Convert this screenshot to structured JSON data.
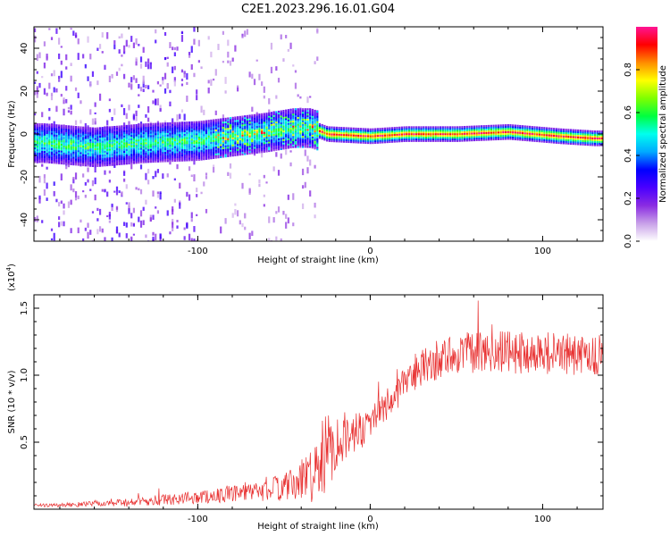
{
  "figure_title": "C2E1.2023.296.16.01.G04",
  "chart_data": [
    {
      "type": "heatmap",
      "title": "C2E1.2023.296.16.01.G04",
      "xlabel": "Height of straight line (km)",
      "ylabel": "Frequency (Hz)",
      "xlim": [
        -195,
        135
      ],
      "ylim": [
        -50,
        50
      ],
      "xticks": [
        -100,
        0,
        100
      ],
      "yticks": [
        -40,
        -20,
        0,
        20,
        40
      ],
      "colorbar": {
        "label": "Normalized spectral amplitude",
        "range": [
          0,
          1
        ],
        "ticks": [
          "0.0",
          "0.2",
          "0.4",
          "0.6",
          "0.8"
        ],
        "colors": [
          "#ffffff",
          "#c8a0e8",
          "#8a2be2",
          "#4a00ff",
          "#0000ff",
          "#00aaff",
          "#00ffee",
          "#00ff40",
          "#7fff00",
          "#ffff00",
          "#ff8c00",
          "#ff0000",
          "#ff1493"
        ]
      },
      "centerline": [
        {
          "x": -190,
          "f": -4
        },
        {
          "x": -160,
          "f": -6
        },
        {
          "x": -130,
          "f": -4
        },
        {
          "x": -100,
          "f": -3
        },
        {
          "x": -80,
          "f": -1
        },
        {
          "x": -60,
          "f": 1
        },
        {
          "x": -45,
          "f": 3
        },
        {
          "x": -35,
          "f": 3
        },
        {
          "x": -25,
          "f": 0
        },
        {
          "x": 0,
          "f": -1
        },
        {
          "x": 20,
          "f": 0
        },
        {
          "x": 50,
          "f": 0
        },
        {
          "x": 80,
          "f": 1
        },
        {
          "x": 110,
          "f": -1
        },
        {
          "x": 130,
          "f": -2
        }
      ]
    },
    {
      "type": "line",
      "xlabel": "Height of straight line (km)",
      "ylabel": "SNR (10 * v/v)",
      "scale_label": "(x10",
      "scale_exp": "4",
      "scale_close": ")",
      "color": "#e83030",
      "xlim": [
        -195,
        135
      ],
      "ylim": [
        0,
        1.6
      ],
      "xticks": [
        -100,
        0,
        100
      ],
      "yticks": [
        "0.5",
        "1.0",
        "1.5"
      ],
      "series": [
        {
          "x": [
            -195,
            -180,
            -160,
            -140,
            -120,
            -100,
            -80,
            -60,
            -45,
            -35,
            -30,
            -25,
            -20,
            -15,
            -10,
            -5,
            0,
            10,
            20,
            30,
            40,
            50,
            60,
            80,
            100,
            120,
            135
          ],
          "y": [
            0.03,
            0.03,
            0.04,
            0.05,
            0.07,
            0.09,
            0.11,
            0.14,
            0.18,
            0.25,
            0.33,
            0.42,
            0.5,
            0.55,
            0.55,
            0.6,
            0.66,
            0.78,
            0.93,
            1.05,
            1.12,
            1.16,
            1.17,
            1.17,
            1.17,
            1.15,
            1.15
          ],
          "noise": [
            0.01,
            0.015,
            0.02,
            0.03,
            0.04,
            0.05,
            0.06,
            0.08,
            0.12,
            0.2,
            0.28,
            0.3,
            0.22,
            0.18,
            0.15,
            0.15,
            0.12,
            0.12,
            0.12,
            0.14,
            0.15,
            0.15,
            0.16,
            0.16,
            0.16,
            0.16,
            0.15
          ]
        }
      ]
    }
  ]
}
